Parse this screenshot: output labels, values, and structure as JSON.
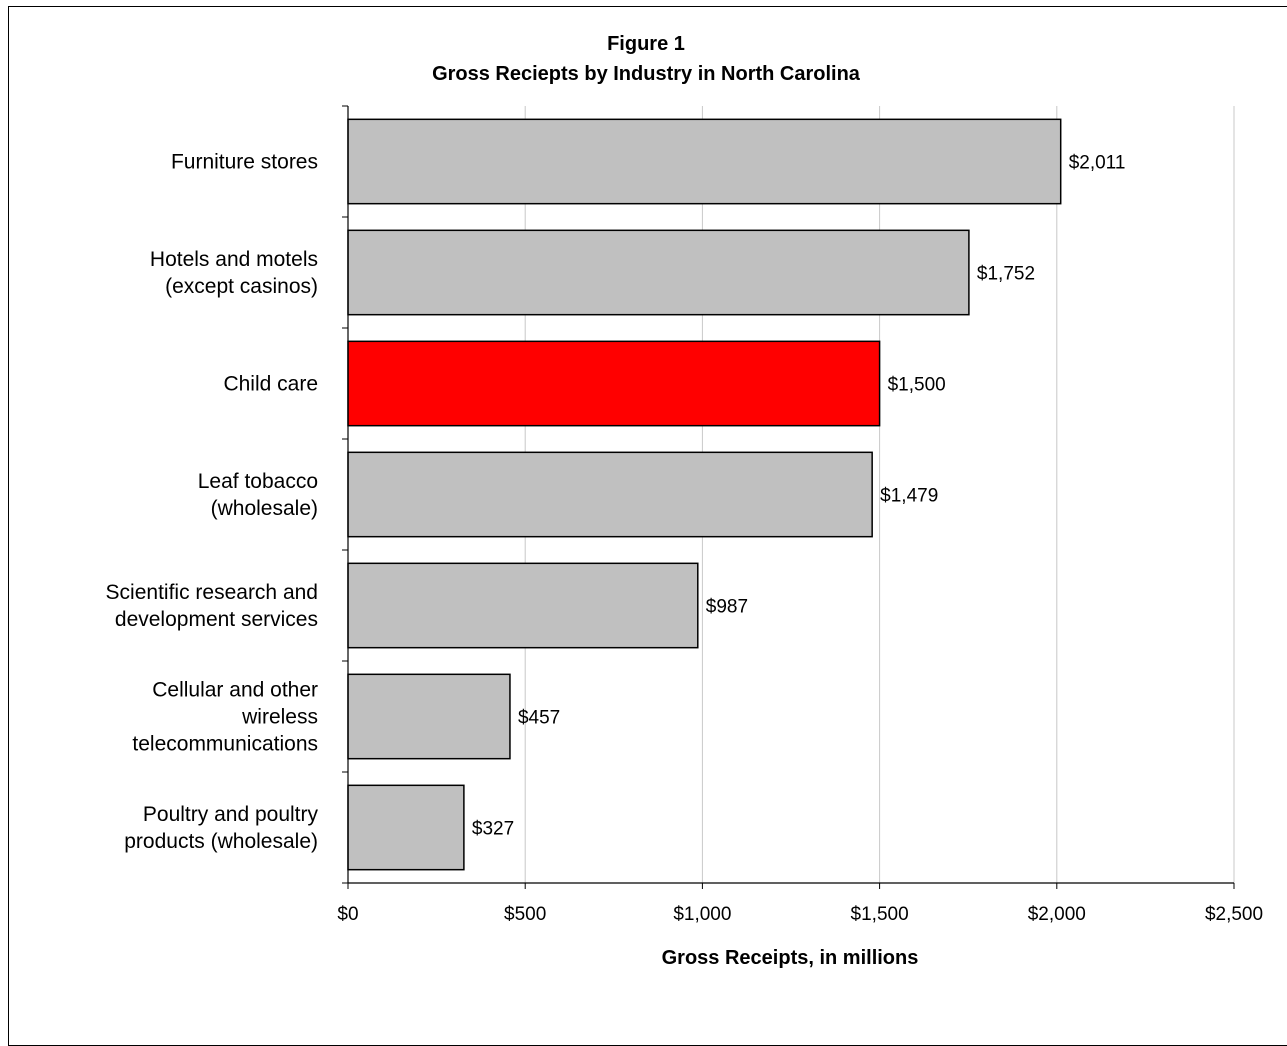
{
  "chart_data": {
    "type": "bar",
    "orientation": "horizontal",
    "title": "Figure 1",
    "subtitle": "Gross Reciepts by Industry in North Carolina",
    "xlabel": "Gross Receipts, in millions",
    "ylabel": "",
    "xlim": [
      0,
      2500
    ],
    "ticks": [
      "$0",
      "$500",
      "$1,000",
      "$1,500",
      "$2,000",
      "$2,500"
    ],
    "categories": [
      [
        "Furniture stores"
      ],
      [
        "Hotels and motels",
        "(except casinos)"
      ],
      [
        "Child care"
      ],
      [
        "Leaf tobacco",
        "(wholesale)"
      ],
      [
        "Scientific research and",
        "development services"
      ],
      [
        "Cellular and other",
        "wireless",
        "telecommunications"
      ],
      [
        "Poultry and poultry",
        "products (wholesale)"
      ]
    ],
    "values": [
      2011,
      1752,
      1500,
      1479,
      987,
      457,
      327
    ],
    "data_labels": [
      "$2,011",
      "$1,752",
      "$1,500",
      "$1,479",
      "$987",
      "$457",
      "$327"
    ],
    "highlight_index": 2,
    "colors": {
      "bar": "#c0c0c0",
      "highlight": "#ff0000",
      "grid": "#c8c8c8",
      "outline": "#000000"
    },
    "grid": true,
    "legend": "none"
  }
}
